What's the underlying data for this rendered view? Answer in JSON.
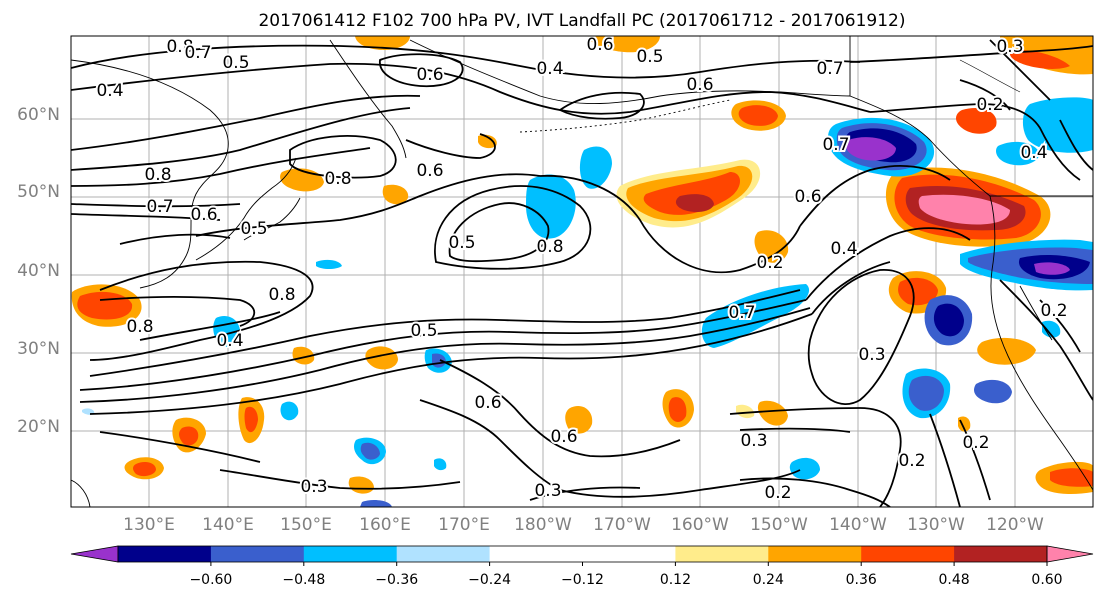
{
  "title": "2017061412 F102 700 hPa PV, IVT Landfall PC (2017061712 - 2017061912)",
  "lat_labels": [
    "60°N",
    "50°N",
    "40°N",
    "30°N",
    "20°N"
  ],
  "lon_labels": [
    "130°E",
    "140°E",
    "150°E",
    "160°E",
    "170°E",
    "180°W",
    "170°W",
    "160°W",
    "150°W",
    "140°W",
    "130°W",
    "120°W"
  ],
  "colorbar": {
    "colors": [
      "#9932cc",
      "#00008b",
      "#3a5fcd",
      "#00bfff",
      "#b0e2ff",
      "#ffffff",
      "#ffffff",
      "#ffec8b",
      "#ffa500",
      "#ff4500",
      "#b22222",
      "#ff82ab"
    ],
    "tick_labels": [
      "-0.60",
      "-0.48",
      "-0.36",
      "-0.24",
      "-0.12",
      "0.12",
      "0.24",
      "0.36",
      "0.48",
      "0.60"
    ]
  },
  "contour_labels": [
    "0.8",
    "0.7",
    "0.5",
    "0.6",
    "0.4",
    "0.6",
    "0.4",
    "0.5",
    "0.6",
    "0.8",
    "0.7",
    "0.6",
    "0.5",
    "0.8",
    "0.6",
    "0.5",
    "0.8",
    "0.7",
    "0.6",
    "0.4",
    "0.8",
    "0.5",
    "0.7",
    "0.4",
    "0.8",
    "0.6",
    "0.6",
    "0.3",
    "0.3",
    "0.3",
    "0.3",
    "0.2",
    "0.2",
    "0.2",
    "0.2",
    "0.2",
    "0.7",
    "0.4",
    "0.2",
    "0.3"
  ]
}
